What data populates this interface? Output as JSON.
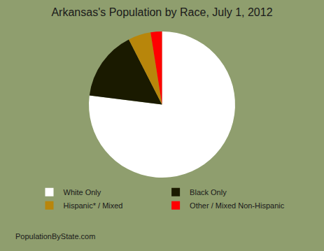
{
  "chart_data": {
    "type": "pie",
    "title": "Arkansas's Population by Race, July 1, 2012",
    "categories": [
      "White Only",
      "Black Only",
      "Hispanic* / Mixed",
      "Other / Mixed Non-Hispanic"
    ],
    "values": [
      77.0,
      15.5,
      5.0,
      2.5
    ],
    "colors": [
      "#FFFFFF",
      "#1a1a00",
      "#b8860b",
      "#ff0000"
    ],
    "legend": "bottom",
    "annotations": [
      "PopulationByState.com"
    ]
  }
}
